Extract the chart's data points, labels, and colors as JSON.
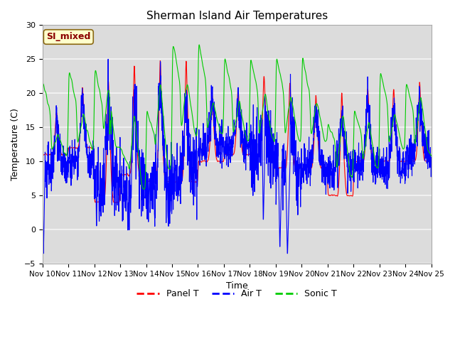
{
  "title": "Sherman Island Air Temperatures",
  "xlabel": "Time",
  "ylabel": "Temperature (C)",
  "ylim": [
    -5,
    30
  ],
  "yticks": [
    -5,
    0,
    5,
    10,
    15,
    20,
    25,
    30
  ],
  "xtick_labels": [
    "Nov 10",
    "Nov 11",
    "Nov 12",
    "Nov 13",
    "Nov 14",
    "Nov 15",
    "Nov 16",
    "Nov 17",
    "Nov 18",
    "Nov 19",
    "Nov 20",
    "Nov 21",
    "Nov 22",
    "Nov 23",
    "Nov 24",
    "Nov 25"
  ],
  "annotation_text": "SI_mixed",
  "annotation_color": "#8B0000",
  "annotation_bg": "#FFFFCC",
  "plot_bg": "#DCDCDC",
  "grid_color": "#F5F5F5",
  "colors": {
    "panel": "#FF0000",
    "air": "#0000FF",
    "sonic": "#00CC00"
  },
  "legend_labels": [
    "Panel T",
    "Air T",
    "Sonic T"
  ]
}
